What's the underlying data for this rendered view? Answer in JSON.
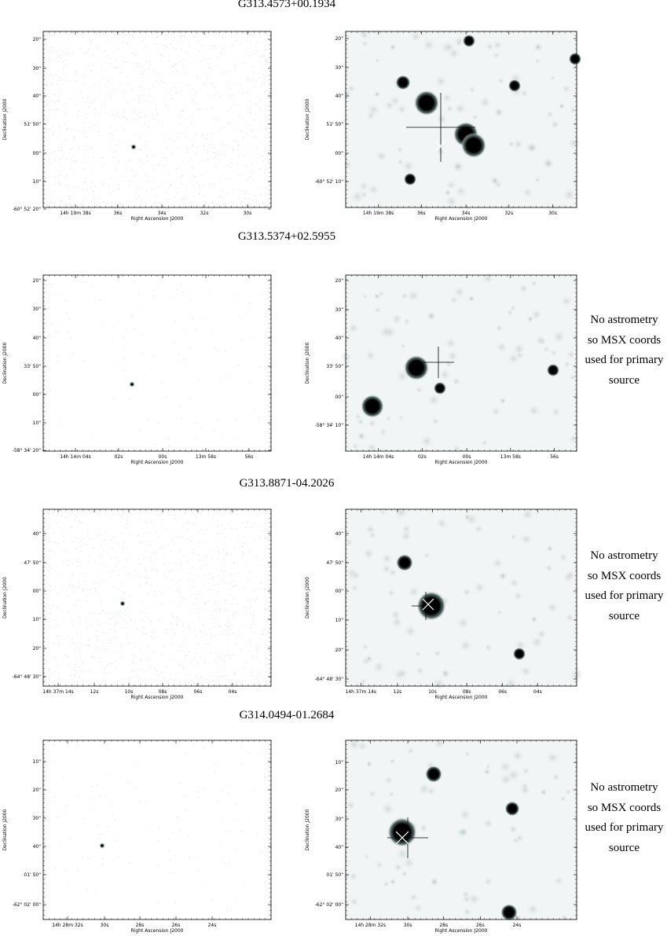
{
  "figures": [
    {
      "title": "G313.4573+00.1934",
      "x_tick_labels": [
        "14h 19m 38s",
        "36s",
        "34s",
        "32s",
        "30s"
      ],
      "y_tick_labels": [
        "20\"",
        "30\"",
        "40\"",
        "51' 50\"",
        "00\"",
        "10\"",
        "-60° 52' 20\""
      ],
      "right_y_tick_labels": [
        "20\"",
        "30\"",
        "40\"",
        "51' 50\"",
        "00\"",
        "-60° 52' 10\""
      ],
      "xlabel": "Right Ascension J2000",
      "ylabel": "Declination J2000",
      "note_lines": []
    },
    {
      "title": "G313.5374+02.5955",
      "x_tick_labels": [
        "14h 14m 04s",
        "02s",
        "00s",
        "13m 58s",
        "56s"
      ],
      "y_tick_labels": [
        "20\"",
        "30\"",
        "40\"",
        "33' 50\"",
        "00\"",
        "10\"",
        "-58° 34' 20\""
      ],
      "right_y_tick_labels": [
        "20\"",
        "30\"",
        "40\"",
        "33' 50\"",
        "00\"",
        "-58° 34' 10\""
      ],
      "xlabel": "Right Ascension J2000",
      "ylabel": "Declination J2000",
      "note_lines": [
        "No astrometry",
        "so MSX coords",
        "used for primary",
        "source"
      ]
    },
    {
      "title": "G313.8871-04.2026",
      "x_tick_labels": [
        "14h 37m 14s",
        "12s",
        "10s",
        "08s",
        "06s",
        "04s"
      ],
      "y_tick_labels": [
        "40\"",
        "47' 50\"",
        "00\"",
        "10\"",
        "20\"",
        "-64° 48' 30\""
      ],
      "right_y_tick_labels": [
        "40\"",
        "47' 50\"",
        "00\"",
        "10\"",
        "20\"",
        "-64° 48' 30\""
      ],
      "xlabel": "Right Ascension J2000",
      "ylabel": "Declination J2000",
      "note_lines": [
        "No astrometry",
        "so MSX coords",
        "used for primary",
        "source"
      ]
    },
    {
      "title": "G314.0494-01.2684",
      "x_tick_labels": [
        "14h 28m 32s",
        "30s",
        "28s",
        "26s",
        "24s"
      ],
      "y_tick_labels": [
        "10\"",
        "20\"",
        "30\"",
        "40\"",
        "01' 50\"",
        "-62° 02' 00\""
      ],
      "right_y_tick_labels": [
        "10\"",
        "20\"",
        "30\"",
        "40\"",
        "01' 50\"",
        "-62° 02' 00\""
      ],
      "xlabel": "Right Ascension J2000",
      "ylabel": "Declination J2000",
      "note_lines": [
        "No astrometry",
        "so MSX coords",
        "used for primary",
        "source"
      ]
    }
  ],
  "colors": {
    "background": "#ffffff",
    "ink": "#000000",
    "image_gray": "#f4f6f6",
    "marker_white": "#ffffff"
  }
}
